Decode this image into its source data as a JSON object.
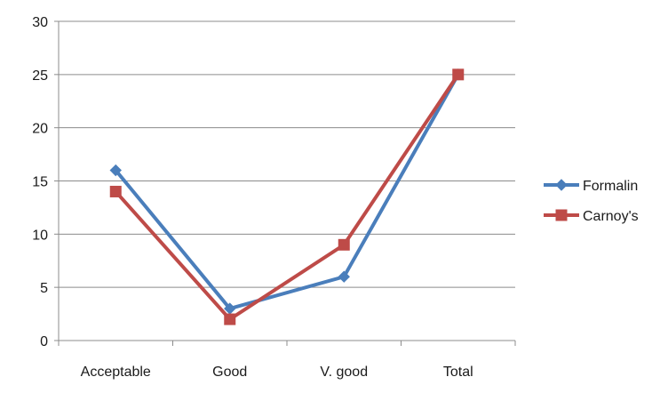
{
  "chart_data": {
    "type": "line",
    "title": "",
    "xlabel": "",
    "ylabel": "",
    "categories": [
      "Acceptable",
      "Good",
      "V. good",
      "Total"
    ],
    "ylim": [
      0,
      30
    ],
    "y_ticks": [
      0,
      5,
      10,
      15,
      20,
      25,
      30
    ],
    "grid": "horizontal",
    "legend_position": "right",
    "series": [
      {
        "name": "Formalin",
        "values": [
          16,
          3,
          6,
          25
        ],
        "color": "#4a7ebb",
        "marker": "diamond"
      },
      {
        "name": "Carnoy's",
        "values": [
          14,
          2,
          9,
          25
        ],
        "color": "#be4b48",
        "marker": "square"
      }
    ]
  }
}
